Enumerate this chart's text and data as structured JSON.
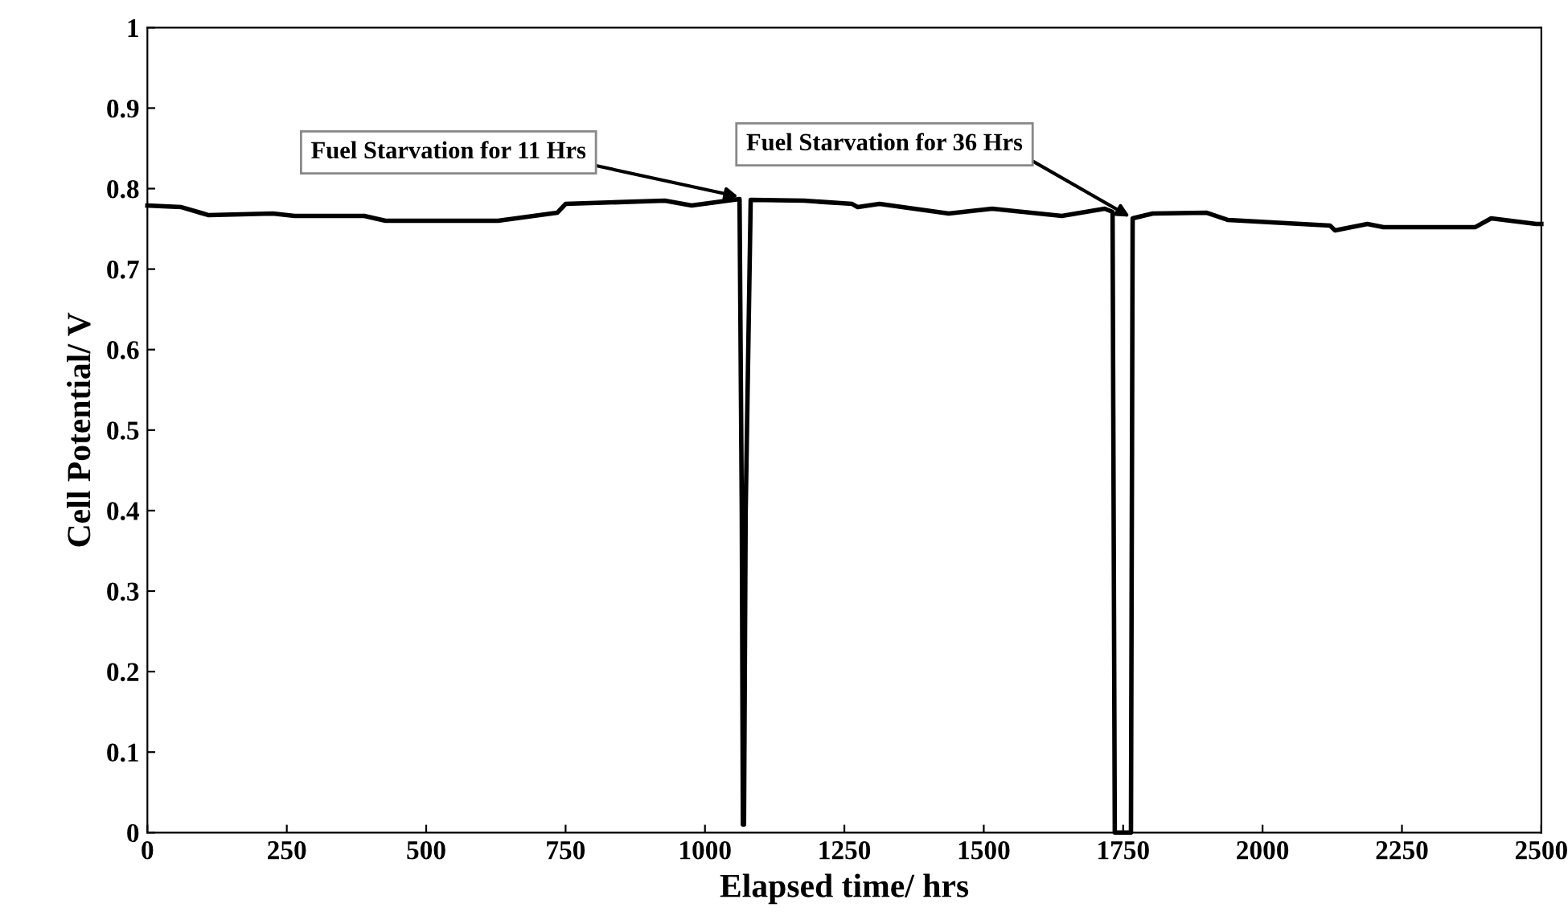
{
  "chart_data": {
    "type": "line",
    "xlabel": "Elapsed time/ hrs",
    "ylabel": "Cell Potential/ V",
    "xlim": [
      0,
      2500
    ],
    "ylim": [
      0,
      1
    ],
    "xticks": [
      0,
      250,
      500,
      750,
      1000,
      1250,
      1500,
      1750,
      2000,
      2250,
      2500
    ],
    "yticks": [
      0,
      0.1,
      0.2,
      0.3,
      0.4,
      0.5,
      0.6,
      0.7,
      0.8,
      0.9,
      1
    ],
    "grid": false,
    "legend": false,
    "marker": "none",
    "line_style": "solid",
    "series": [
      {
        "color": "#000000",
        "x": [
          0,
          61,
          110,
          225,
          264,
          389,
          427,
          629,
          735,
          750,
          928,
          976,
          1062,
          1066,
          1068,
          1070,
          1073,
          1082,
          1178,
          1264,
          1274,
          1313,
          1437,
          1515,
          1640,
          1717,
          1731,
          1735,
          1764,
          1767,
          1803,
          1900,
          1938,
          2121,
          2130,
          2188,
          2217,
          2381,
          2410,
          2491,
          2500
        ],
        "values": [
          0.779,
          0.777,
          0.767,
          0.769,
          0.766,
          0.766,
          0.76,
          0.76,
          0.77,
          0.781,
          0.785,
          0.779,
          0.787,
          0.4,
          0.01,
          0.01,
          0.4,
          0.786,
          0.785,
          0.781,
          0.777,
          0.781,
          0.769,
          0.775,
          0.766,
          0.775,
          0.771,
          0,
          0,
          0.763,
          0.769,
          0.77,
          0.761,
          0.754,
          0.748,
          0.756,
          0.752,
          0.752,
          0.763,
          0.756,
          0.756
        ]
      }
    ],
    "annotations": [
      {
        "text": "Fuel Starvation for 11 Hrs",
        "x": 1060,
        "y": 0.79
      },
      {
        "text": "Fuel Starvation for 36 Hrs",
        "x": 1762,
        "y": 0.765
      }
    ]
  }
}
